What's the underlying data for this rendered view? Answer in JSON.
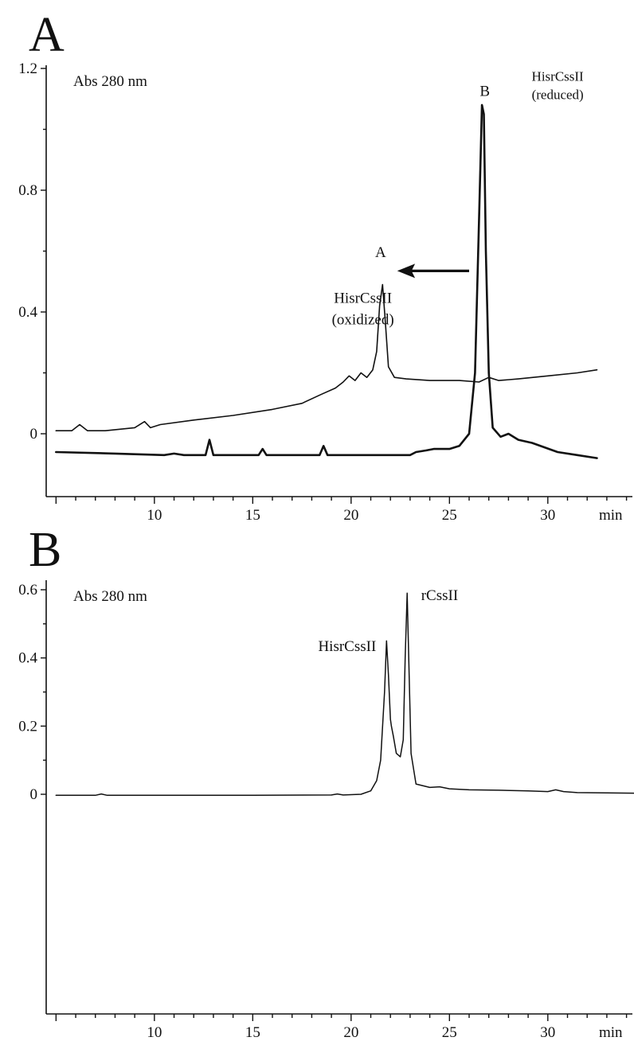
{
  "chart_data": [
    {
      "type": "line",
      "panel_label": "A",
      "ylabel": "Abs 280 nm",
      "xunit": "min",
      "xlim": [
        5,
        35
      ],
      "ylim": [
        -0.2,
        1.2
      ],
      "xticks": [
        10,
        15,
        20,
        25,
        30
      ],
      "yticks": [
        0,
        0.4,
        0.8,
        1.2
      ],
      "ytick_labels": [
        "0",
        "0.4",
        "0.8",
        "1.2"
      ],
      "grid": false,
      "series": [
        {
          "x": [
            5.0,
            5.8,
            6.2,
            6.6,
            7.5,
            9.0,
            9.5,
            9.8,
            10.3,
            12.0,
            14.0,
            16.0,
            17.5,
            18.5,
            19.2,
            19.6,
            19.9,
            20.2,
            20.5,
            20.8,
            21.1,
            21.3,
            21.45,
            21.6,
            21.75,
            21.9,
            22.2,
            22.8,
            24.0,
            25.5,
            26.5,
            27.0,
            27.5,
            28.5,
            30.0,
            31.5,
            32.5
          ],
          "y": [
            0.01,
            0.01,
            0.03,
            0.01,
            0.01,
            0.02,
            0.04,
            0.02,
            0.03,
            0.045,
            0.06,
            0.08,
            0.1,
            0.13,
            0.15,
            0.17,
            0.19,
            0.175,
            0.2,
            0.185,
            0.21,
            0.27,
            0.42,
            0.49,
            0.36,
            0.22,
            0.185,
            0.18,
            0.175,
            0.175,
            0.17,
            0.185,
            0.175,
            0.18,
            0.19,
            0.2,
            0.21
          ]
        },
        {
          "x": [
            5.0,
            8.0,
            10.5,
            11.0,
            11.5,
            12.6,
            12.8,
            13.0,
            15.3,
            15.5,
            15.7,
            18.4,
            18.6,
            18.8,
            21.0,
            23.0,
            23.3,
            23.8,
            24.2,
            25.0,
            25.5,
            26.0,
            26.3,
            26.5,
            26.65,
            26.75,
            26.85,
            27.0,
            27.2,
            27.6,
            28.0,
            28.5,
            29.2,
            30.5,
            31.5,
            32.5
          ],
          "y": [
            -0.06,
            -0.065,
            -0.07,
            -0.065,
            -0.07,
            -0.07,
            -0.02,
            -0.07,
            -0.07,
            -0.05,
            -0.07,
            -0.07,
            -0.04,
            -0.07,
            -0.07,
            -0.07,
            -0.06,
            -0.055,
            -0.05,
            -0.05,
            -0.04,
            0.0,
            0.2,
            0.7,
            1.08,
            1.05,
            0.6,
            0.2,
            0.02,
            -0.01,
            0.0,
            -0.02,
            -0.03,
            -0.06,
            -0.07,
            -0.08
          ]
        }
      ],
      "annotations": [
        {
          "text": "HisrCssII",
          "x": 30.5,
          "y": 1.16,
          "size": "small"
        },
        {
          "text": "(reduced)",
          "x": 30.5,
          "y": 1.1,
          "size": "small"
        },
        {
          "text": "B",
          "x": 26.8,
          "y": 1.11,
          "size": "normal"
        },
        {
          "text": "A",
          "x": 21.5,
          "y": 0.58,
          "size": "normal"
        },
        {
          "text": "HisrCssII",
          "x": 20.6,
          "y": 0.43,
          "size": "normal"
        },
        {
          "text": "(oxidized)",
          "x": 20.6,
          "y": 0.36,
          "size": "normal"
        }
      ],
      "arrow": {
        "from": [
          26.0,
          0.535
        ],
        "to": [
          22.4,
          0.535
        ]
      }
    },
    {
      "type": "line",
      "panel_label": "B",
      "ylabel": "Abs 280 nm",
      "xunit": "min",
      "xlim": [
        5,
        35
      ],
      "ylim": [
        -0.13,
        0.6
      ],
      "xticks": [
        10,
        15,
        20,
        25,
        30
      ],
      "yticks": [
        0,
        0.2,
        0.4,
        0.6
      ],
      "ytick_labels": [
        "0",
        "0.2",
        "0.4",
        "0.6"
      ],
      "grid": false,
      "series": [
        {
          "x": [
            5.0,
            7.0,
            7.3,
            7.6,
            10.0,
            15.0,
            19.0,
            19.3,
            19.6,
            20.5,
            21.0,
            21.3,
            21.5,
            21.7,
            21.8,
            21.9,
            22.0,
            22.05,
            22.15,
            22.3,
            22.5,
            22.65,
            22.75,
            22.85,
            22.95,
            23.05,
            23.3,
            24.0,
            24.5,
            25.0,
            26.0,
            27.5,
            29.0,
            30.0,
            30.4,
            30.8,
            31.5,
            33.0,
            34.5
          ],
          "y": [
            -0.003,
            -0.003,
            0.001,
            -0.003,
            -0.003,
            -0.003,
            -0.002,
            0.001,
            -0.002,
            0.0,
            0.01,
            0.04,
            0.1,
            0.3,
            0.45,
            0.35,
            0.22,
            0.2,
            0.17,
            0.12,
            0.11,
            0.16,
            0.4,
            0.59,
            0.35,
            0.12,
            0.03,
            0.02,
            0.022,
            0.016,
            0.013,
            0.012,
            0.01,
            0.008,
            0.013,
            0.008,
            0.005,
            0.004,
            0.003
          ]
        }
      ],
      "annotations": [
        {
          "text": "rCssII",
          "x": 24.5,
          "y": 0.57,
          "size": "normal"
        },
        {
          "text": "HisrCssII",
          "x": 19.8,
          "y": 0.42,
          "size": "normal"
        }
      ]
    }
  ]
}
